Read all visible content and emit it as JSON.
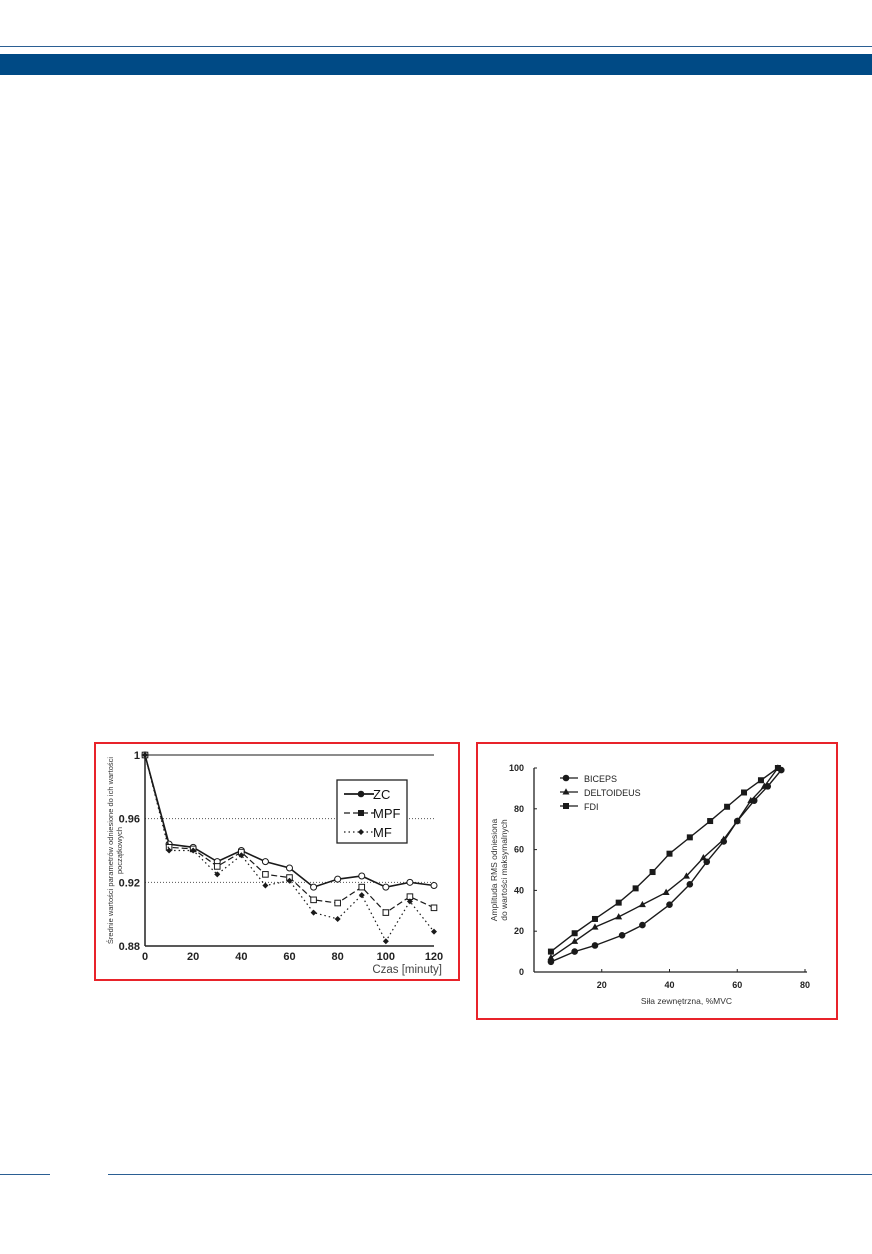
{
  "colors": {
    "header_band": "#004a85",
    "frame": "#e8232a",
    "ink": "#1a1a1a"
  },
  "chart_data": [
    {
      "type": "line",
      "ylabel": "Średnie wartości parametrów odniesione do ich wartości początkowych",
      "xlabel": "Czas [minuty]",
      "xlim": [
        0,
        120
      ],
      "ylim": [
        0.88,
        1.0
      ],
      "xticks": [
        "0",
        "20",
        "40",
        "60",
        "80",
        "100",
        "120"
      ],
      "yticks": [
        "0.88",
        "0.92",
        "0.96",
        "1"
      ],
      "grid": "dotted horizontal at 0.92 and 0.96",
      "legend_position": "top-right",
      "x": [
        0,
        10,
        20,
        30,
        40,
        50,
        60,
        70,
        80,
        90,
        100,
        110,
        120
      ],
      "series": [
        {
          "name": "ZC",
          "style": "solid",
          "marker": "open-circle",
          "values": [
            1,
            0.944,
            0.942,
            0.933,
            0.94,
            0.933,
            0.929,
            0.917,
            0.922,
            0.924,
            0.917,
            0.92,
            0.918
          ]
        },
        {
          "name": "MPF",
          "style": "dashed",
          "marker": "open-square",
          "values": [
            1,
            0.942,
            0.941,
            0.93,
            0.939,
            0.925,
            0.923,
            0.909,
            0.907,
            0.917,
            0.901,
            0.911,
            0.904
          ]
        },
        {
          "name": "MF",
          "style": "dotted",
          "marker": "diamond",
          "values": [
            1,
            0.94,
            0.94,
            0.925,
            0.937,
            0.918,
            0.921,
            0.901,
            0.897,
            0.912,
            0.883,
            0.908,
            0.889
          ]
        }
      ]
    },
    {
      "type": "line",
      "ylabel": "Amplituda RMS odniesiona do wartości maksymalnych",
      "ylabel_lines": [
        "Amplituda RMS odniesiona",
        "do wartości maksymalnych"
      ],
      "xlabel": "Siła zewnętrzna, %MVC",
      "xlim": [
        0,
        80
      ],
      "ylim": [
        0,
        100
      ],
      "xticks": [
        "20",
        "40",
        "60",
        "80"
      ],
      "yticks": [
        "0",
        "20",
        "40",
        "60",
        "80",
        "100"
      ],
      "grid": "off",
      "legend_position": "top-left",
      "series": [
        {
          "name": "BICEPS",
          "marker": "circle",
          "points": [
            [
              5,
              5
            ],
            [
              12,
              10
            ],
            [
              18,
              13
            ],
            [
              26,
              18
            ],
            [
              32,
              23
            ],
            [
              40,
              33
            ],
            [
              46,
              43
            ],
            [
              51,
              54
            ],
            [
              56,
              64
            ],
            [
              60,
              74
            ],
            [
              65,
              84
            ],
            [
              69,
              91
            ],
            [
              73,
              99
            ]
          ]
        },
        {
          "name": "DELTOIDEUS",
          "marker": "triangle",
          "points": [
            [
              5,
              7
            ],
            [
              12,
              15
            ],
            [
              18,
              22
            ],
            [
              25,
              27
            ],
            [
              32,
              33
            ],
            [
              39,
              39
            ],
            [
              45,
              47
            ],
            [
              50,
              56
            ],
            [
              56,
              65
            ],
            [
              60,
              74
            ],
            [
              64,
              84
            ],
            [
              68,
              91
            ],
            [
              72,
              100
            ]
          ]
        },
        {
          "name": "FDI",
          "marker": "square",
          "points": [
            [
              5,
              10
            ],
            [
              12,
              19
            ],
            [
              18,
              26
            ],
            [
              25,
              34
            ],
            [
              30,
              41
            ],
            [
              35,
              49
            ],
            [
              40,
              58
            ],
            [
              46,
              66
            ],
            [
              52,
              74
            ],
            [
              57,
              81
            ],
            [
              62,
              88
            ],
            [
              67,
              94
            ],
            [
              72,
              100
            ]
          ]
        }
      ]
    }
  ]
}
